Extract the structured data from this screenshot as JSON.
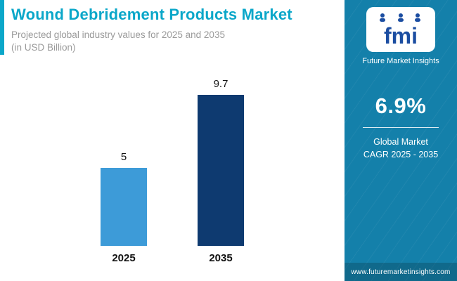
{
  "header": {
    "title": "Wound Debridement Products Market",
    "subtitle_line1": "Projected global industry values for 2025 and 2035",
    "subtitle_line2": "(in USD Billion)"
  },
  "chart_data": {
    "type": "bar",
    "title": "Wound Debridement Products Market",
    "subtitle": "Projected global industry values for 2025 and 2035 (in USD Billion)",
    "categories": [
      "2025",
      "2035"
    ],
    "values": [
      5,
      9.7
    ],
    "value_labels": [
      "5",
      "9.7"
    ],
    "unit": "USD Billion",
    "ylim": [
      0,
      10
    ],
    "grid": false,
    "legend": "none",
    "bar_colors": [
      "#3d9bd8",
      "#0e3a70"
    ]
  },
  "sidebar": {
    "logo_text": "fmi",
    "brand": "Future Market Insights",
    "cagr_value": "6.9%",
    "cagr_label_line1": "Global Market",
    "cagr_label_line2": "CAGR 2025 - 2035",
    "website": "www.futuremarketinsights.com"
  },
  "colors": {
    "title_accent": "#0ba7c9",
    "sidebar_bg": "#1480aa",
    "bar_2025": "#3d9bd8",
    "bar_2035": "#0e3a70",
    "logo_blue": "#1b4da1"
  }
}
